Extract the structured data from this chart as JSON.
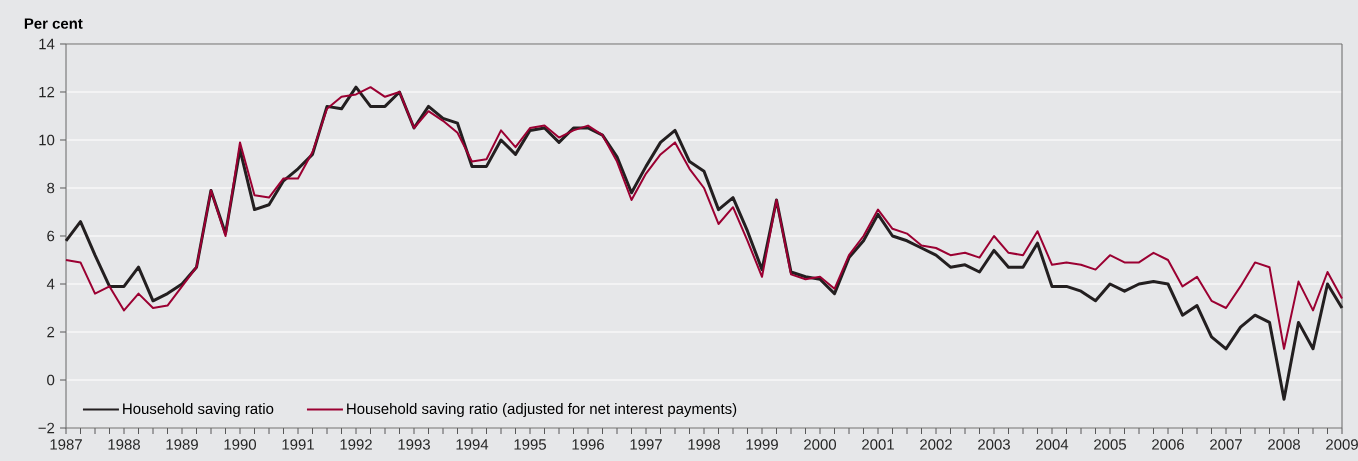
{
  "chart_data": {
    "type": "line",
    "ylabel": "Per cent",
    "x": [
      1987,
      1987.25,
      1987.5,
      1987.75,
      1988,
      1988.25,
      1988.5,
      1988.75,
      1989,
      1989.25,
      1989.5,
      1989.75,
      1990,
      1990.25,
      1990.5,
      1990.75,
      1991,
      1991.25,
      1991.5,
      1991.75,
      1992,
      1992.25,
      1992.5,
      1992.75,
      1993,
      1993.25,
      1993.5,
      1993.75,
      1994,
      1994.25,
      1994.5,
      1994.75,
      1995,
      1995.25,
      1995.5,
      1995.75,
      1996,
      1996.25,
      1996.5,
      1996.75,
      1997,
      1997.25,
      1997.5,
      1997.75,
      1998,
      1998.25,
      1998.5,
      1998.75,
      1999,
      1999.25,
      1999.5,
      1999.75,
      2000,
      2000.25,
      2000.5,
      2000.75,
      2001,
      2001.25,
      2001.5,
      2001.75,
      2002,
      2002.25,
      2002.5,
      2002.75,
      2003,
      2003.25,
      2003.5,
      2003.75,
      2004,
      2004.25,
      2004.5,
      2004.75,
      2005,
      2005.25,
      2005.5,
      2005.75,
      2006,
      2006.25,
      2006.5,
      2006.75,
      2007,
      2007.25,
      2007.5,
      2007.75,
      2008,
      2008.25,
      2008.5,
      2008.75,
      2009
    ],
    "series": [
      {
        "name": "Household saving ratio",
        "color": "#231f20",
        "values": [
          5.8,
          6.6,
          5.2,
          3.9,
          3.9,
          4.7,
          3.3,
          3.6,
          4.0,
          4.7,
          7.9,
          6.1,
          9.6,
          7.1,
          7.3,
          8.3,
          8.8,
          9.4,
          11.4,
          11.3,
          12.2,
          11.4,
          11.4,
          12.0,
          10.5,
          11.4,
          10.9,
          10.7,
          8.9,
          8.9,
          10.0,
          9.4,
          10.4,
          10.5,
          9.9,
          10.5,
          10.5,
          10.2,
          9.3,
          7.8,
          8.9,
          9.9,
          10.4,
          9.1,
          8.7,
          7.1,
          7.6,
          6.2,
          4.6,
          7.5,
          4.5,
          4.3,
          4.2,
          3.6,
          5.1,
          5.8,
          6.9,
          6.0,
          5.8,
          5.5,
          5.2,
          4.7,
          4.8,
          4.5,
          5.4,
          4.7,
          4.7,
          5.7,
          3.9,
          3.9,
          3.7,
          3.3,
          4.0,
          3.7,
          4.0,
          4.1,
          4.0,
          2.7,
          3.1,
          1.8,
          1.3,
          2.2,
          2.7,
          2.4,
          -0.8,
          2.4,
          1.3,
          4.0,
          3.0
        ]
      },
      {
        "name": "Household saving ratio (adjusted for net interest payments)",
        "color": "#9b0032",
        "values": [
          5.0,
          4.9,
          3.6,
          3.9,
          2.9,
          3.6,
          3.0,
          3.1,
          3.9,
          4.7,
          7.9,
          6.0,
          9.9,
          7.7,
          7.6,
          8.4,
          8.4,
          9.5,
          11.3,
          11.8,
          11.9,
          12.2,
          11.8,
          12.0,
          10.5,
          11.2,
          10.8,
          10.3,
          9.1,
          9.2,
          10.4,
          9.7,
          10.5,
          10.6,
          10.1,
          10.4,
          10.6,
          10.2,
          9.1,
          7.5,
          8.6,
          9.4,
          9.9,
          8.8,
          8.0,
          6.5,
          7.2,
          5.8,
          4.3,
          7.5,
          4.4,
          4.2,
          4.3,
          3.8,
          5.2,
          6.0,
          7.1,
          6.3,
          6.1,
          5.6,
          5.5,
          5.2,
          5.3,
          5.1,
          6.0,
          5.3,
          5.2,
          6.2,
          4.8,
          4.9,
          4.8,
          4.6,
          5.2,
          4.9,
          4.9,
          5.3,
          5.0,
          3.9,
          4.3,
          3.3,
          3.0,
          3.9,
          4.9,
          4.7,
          1.3,
          4.1,
          2.9,
          4.5,
          3.4
        ]
      }
    ],
    "xlim": [
      1987,
      2009
    ],
    "xticks": [
      1987,
      1988,
      1989,
      1990,
      1991,
      1992,
      1993,
      1994,
      1995,
      1996,
      1997,
      1998,
      1999,
      2000,
      2001,
      2002,
      2003,
      2004,
      2005,
      2006,
      2007,
      2008,
      2009
    ],
    "ylim": [
      -2,
      14
    ],
    "yticks": [
      {
        "value": -2,
        "label": "−2"
      },
      0,
      2,
      4,
      6,
      8,
      10,
      12,
      14
    ],
    "grid": "y",
    "legend": "bottom left",
    "line_style": "solid",
    "marker": "none"
  }
}
